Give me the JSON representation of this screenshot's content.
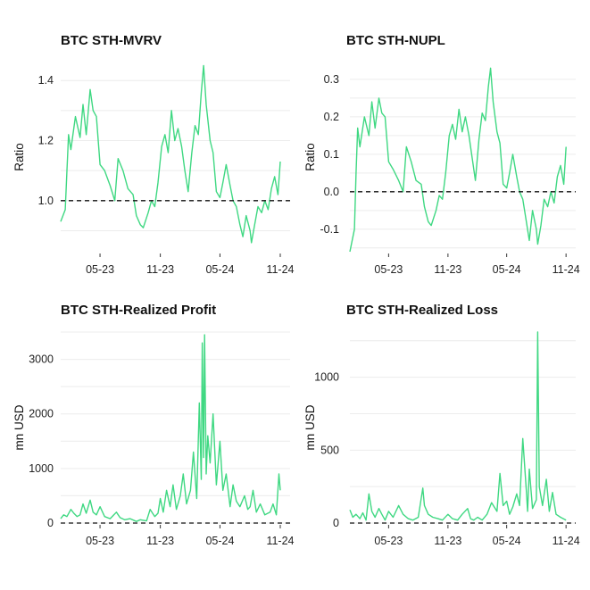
{
  "colors": {
    "series": "#3fd882",
    "zero_line": "#111111",
    "grid": "#ececec"
  },
  "chart_data": [
    {
      "type": "line",
      "title": "BTC STH-MVRV",
      "ylabel": "Ratio",
      "ylim": [
        0.83,
        1.46
      ],
      "yticks": [
        1.0,
        1.2,
        1.4
      ],
      "ytick_labels": [
        "1.0",
        "1.2",
        "1.4"
      ],
      "xlim": [
        "2023-01-01",
        "2024-12-01"
      ],
      "xticks": [
        "2023-05-01",
        "2023-11-01",
        "2024-05-01",
        "2024-11-01"
      ],
      "xtick_labels": [
        "05-23",
        "11-23",
        "05-24",
        "11-24"
      ],
      "reference_line": {
        "y": 1.0,
        "style": "dashed"
      },
      "grid": "horizontal",
      "series": [
        {
          "x": [
            "2023-01-01",
            "2023-01-15",
            "2023-01-20",
            "2023-01-25",
            "2023-02-01",
            "2023-02-15",
            "2023-03-01",
            "2023-03-10",
            "2023-03-20",
            "2023-04-01",
            "2023-04-10",
            "2023-04-20",
            "2023-05-01",
            "2023-05-15",
            "2023-06-01",
            "2023-06-15",
            "2023-06-25",
            "2023-07-10",
            "2023-07-25",
            "2023-08-10",
            "2023-08-20",
            "2023-09-01",
            "2023-09-10",
            "2023-09-25",
            "2023-10-05",
            "2023-10-15",
            "2023-10-25",
            "2023-11-05",
            "2023-11-15",
            "2023-11-25",
            "2023-12-05",
            "2023-12-15",
            "2023-12-25",
            "2024-01-05",
            "2024-01-15",
            "2024-01-25",
            "2024-02-05",
            "2024-02-15",
            "2024-02-25",
            "2024-03-05",
            "2024-03-12",
            "2024-03-20",
            "2024-04-01",
            "2024-04-10",
            "2024-04-20",
            "2024-05-01",
            "2024-05-10",
            "2024-05-20",
            "2024-06-01",
            "2024-06-10",
            "2024-06-20",
            "2024-07-01",
            "2024-07-10",
            "2024-07-20",
            "2024-08-01",
            "2024-08-05",
            "2024-08-15",
            "2024-08-25",
            "2024-09-05",
            "2024-09-15",
            "2024-09-25",
            "2024-10-05",
            "2024-10-15",
            "2024-10-25",
            "2024-11-01"
          ],
          "values": [
            0.93,
            0.97,
            1.1,
            1.22,
            1.17,
            1.28,
            1.21,
            1.32,
            1.22,
            1.37,
            1.3,
            1.28,
            1.12,
            1.1,
            1.05,
            1.0,
            1.14,
            1.1,
            1.04,
            1.02,
            0.95,
            0.92,
            0.91,
            0.96,
            1.0,
            0.98,
            1.06,
            1.18,
            1.22,
            1.16,
            1.3,
            1.2,
            1.24,
            1.18,
            1.1,
            1.03,
            1.16,
            1.25,
            1.22,
            1.36,
            1.45,
            1.32,
            1.2,
            1.16,
            1.03,
            1.01,
            1.06,
            1.12,
            1.05,
            1.0,
            0.98,
            0.92,
            0.88,
            0.95,
            0.9,
            0.86,
            0.92,
            0.98,
            0.96,
            1.0,
            0.97,
            1.04,
            1.08,
            1.02,
            1.13
          ]
        }
      ]
    },
    {
      "type": "line",
      "title": "BTC STH-NUPL",
      "ylabel": "Ratio",
      "ylim": [
        -0.16,
        0.345
      ],
      "yticks": [
        -0.1,
        0.0,
        0.1,
        0.2,
        0.3
      ],
      "ytick_labels": [
        "-0.1",
        "0.0",
        "0.1",
        "0.2",
        "0.3"
      ],
      "xlim": [
        "2023-01-01",
        "2024-12-01"
      ],
      "xticks": [
        "2023-05-01",
        "2023-11-01",
        "2024-05-01",
        "2024-11-01"
      ],
      "xtick_labels": [
        "05-23",
        "11-23",
        "05-24",
        "11-24"
      ],
      "reference_line": {
        "y": 0.0,
        "style": "dashed"
      },
      "grid": "horizontal",
      "series": [
        {
          "x": [
            "2023-01-01",
            "2023-01-15",
            "2023-01-20",
            "2023-01-25",
            "2023-02-01",
            "2023-02-15",
            "2023-03-01",
            "2023-03-10",
            "2023-03-20",
            "2023-04-01",
            "2023-04-10",
            "2023-04-20",
            "2023-05-01",
            "2023-05-15",
            "2023-06-01",
            "2023-06-15",
            "2023-06-25",
            "2023-07-10",
            "2023-07-25",
            "2023-08-10",
            "2023-08-20",
            "2023-09-01",
            "2023-09-10",
            "2023-09-25",
            "2023-10-05",
            "2023-10-15",
            "2023-10-25",
            "2023-11-05",
            "2023-11-15",
            "2023-11-25",
            "2023-12-05",
            "2023-12-15",
            "2023-12-25",
            "2024-01-05",
            "2024-01-15",
            "2024-01-25",
            "2024-02-05",
            "2024-02-15",
            "2024-02-25",
            "2024-03-05",
            "2024-03-12",
            "2024-03-20",
            "2024-04-01",
            "2024-04-10",
            "2024-04-20",
            "2024-05-01",
            "2024-05-10",
            "2024-05-20",
            "2024-06-01",
            "2024-06-10",
            "2024-06-20",
            "2024-07-01",
            "2024-07-10",
            "2024-07-20",
            "2024-08-01",
            "2024-08-05",
            "2024-08-15",
            "2024-08-25",
            "2024-09-05",
            "2024-09-15",
            "2024-09-25",
            "2024-10-05",
            "2024-10-15",
            "2024-10-25",
            "2024-11-01"
          ],
          "values": [
            -0.16,
            -0.1,
            0.05,
            0.17,
            0.12,
            0.2,
            0.15,
            0.24,
            0.17,
            0.25,
            0.21,
            0.2,
            0.08,
            0.06,
            0.03,
            0.0,
            0.12,
            0.08,
            0.03,
            0.02,
            -0.04,
            -0.08,
            -0.09,
            -0.05,
            -0.01,
            -0.02,
            0.05,
            0.15,
            0.18,
            0.14,
            0.22,
            0.16,
            0.2,
            0.15,
            0.09,
            0.03,
            0.14,
            0.21,
            0.19,
            0.28,
            0.33,
            0.24,
            0.16,
            0.13,
            0.02,
            0.01,
            0.05,
            0.1,
            0.04,
            0.0,
            -0.02,
            -0.08,
            -0.13,
            -0.05,
            -0.1,
            -0.14,
            -0.09,
            -0.02,
            -0.04,
            0.0,
            -0.03,
            0.04,
            0.07,
            0.02,
            0.12
          ]
        }
      ]
    },
    {
      "type": "line",
      "title": "BTC STH-Realized Profit",
      "ylabel": "mn USD",
      "ylim": [
        0,
        3500
      ],
      "yticks": [
        0,
        1000,
        2000,
        3000
      ],
      "ytick_labels": [
        "0",
        "1000",
        "2000",
        "3000"
      ],
      "xlim": [
        "2023-01-01",
        "2024-12-01"
      ],
      "xticks": [
        "2023-05-01",
        "2023-11-01",
        "2024-05-01",
        "2024-11-01"
      ],
      "xtick_labels": [
        "05-23",
        "11-23",
        "05-24",
        "11-24"
      ],
      "reference_line": {
        "y": 0,
        "style": "dashed"
      },
      "grid": "horizontal",
      "series": [
        {
          "x": [
            "2023-01-01",
            "2023-01-10",
            "2023-01-20",
            "2023-02-01",
            "2023-02-10",
            "2023-02-20",
            "2023-03-01",
            "2023-03-10",
            "2023-03-20",
            "2023-04-01",
            "2023-04-10",
            "2023-04-20",
            "2023-05-01",
            "2023-05-15",
            "2023-06-01",
            "2023-06-20",
            "2023-07-01",
            "2023-07-15",
            "2023-08-01",
            "2023-08-20",
            "2023-09-01",
            "2023-09-20",
            "2023-10-01",
            "2023-10-15",
            "2023-10-25",
            "2023-11-01",
            "2023-11-10",
            "2023-11-20",
            "2023-12-01",
            "2023-12-10",
            "2023-12-20",
            "2024-01-01",
            "2024-01-10",
            "2024-01-20",
            "2024-02-01",
            "2024-02-10",
            "2024-02-20",
            "2024-02-28",
            "2024-03-05",
            "2024-03-08",
            "2024-03-12",
            "2024-03-15",
            "2024-03-20",
            "2024-03-25",
            "2024-04-01",
            "2024-04-10",
            "2024-04-20",
            "2024-05-01",
            "2024-05-10",
            "2024-05-20",
            "2024-06-01",
            "2024-06-10",
            "2024-06-20",
            "2024-07-01",
            "2024-07-15",
            "2024-07-25",
            "2024-08-01",
            "2024-08-10",
            "2024-08-20",
            "2024-09-01",
            "2024-09-15",
            "2024-10-01",
            "2024-10-10",
            "2024-10-20",
            "2024-10-28",
            "2024-11-01"
          ],
          "values": [
            80,
            150,
            120,
            250,
            180,
            120,
            150,
            350,
            180,
            420,
            200,
            150,
            300,
            120,
            80,
            200,
            100,
            60,
            80,
            30,
            60,
            40,
            250,
            120,
            180,
            450,
            200,
            600,
            300,
            700,
            250,
            500,
            900,
            350,
            600,
            1300,
            450,
            2200,
            800,
            3300,
            1200,
            3450,
            900,
            1600,
            1100,
            2000,
            700,
            1500,
            600,
            900,
            300,
            700,
            400,
            300,
            500,
            250,
            300,
            600,
            200,
            350,
            150,
            200,
            350,
            150,
            900,
            600
          ]
        }
      ]
    },
    {
      "type": "line",
      "title": "BTC STH-Realized Loss",
      "ylabel": "mn USD",
      "ylim": [
        0,
        1310
      ],
      "yticks": [
        0,
        500,
        1000
      ],
      "ytick_labels": [
        "0",
        "500",
        "1000"
      ],
      "xlim": [
        "2023-01-01",
        "2024-12-01"
      ],
      "xticks": [
        "2023-05-01",
        "2023-11-01",
        "2024-05-01",
        "2024-11-01"
      ],
      "xtick_labels": [
        "05-23",
        "11-23",
        "05-24",
        "11-24"
      ],
      "reference_line": {
        "y": 0,
        "style": "dashed"
      },
      "grid": "horizontal",
      "series": [
        {
          "x": [
            "2023-01-01",
            "2023-01-10",
            "2023-01-20",
            "2023-02-01",
            "2023-02-10",
            "2023-02-20",
            "2023-03-01",
            "2023-03-10",
            "2023-03-20",
            "2023-04-01",
            "2023-04-10",
            "2023-04-20",
            "2023-05-01",
            "2023-05-15",
            "2023-06-01",
            "2023-06-15",
            "2023-07-01",
            "2023-07-15",
            "2023-08-01",
            "2023-08-15",
            "2023-08-20",
            "2023-09-01",
            "2023-09-15",
            "2023-10-01",
            "2023-10-15",
            "2023-11-01",
            "2023-11-15",
            "2023-12-01",
            "2023-12-15",
            "2024-01-01",
            "2024-01-10",
            "2024-01-20",
            "2024-02-01",
            "2024-02-15",
            "2024-03-01",
            "2024-03-15",
            "2024-04-01",
            "2024-04-10",
            "2024-04-20",
            "2024-05-01",
            "2024-05-10",
            "2024-05-20",
            "2024-06-01",
            "2024-06-10",
            "2024-06-20",
            "2024-07-01",
            "2024-07-05",
            "2024-07-10",
            "2024-07-20",
            "2024-08-01",
            "2024-08-05",
            "2024-08-10",
            "2024-08-20",
            "2024-09-01",
            "2024-09-10",
            "2024-09-20",
            "2024-10-01",
            "2024-10-15",
            "2024-11-01"
          ],
          "values": [
            90,
            40,
            60,
            30,
            70,
            20,
            200,
            80,
            40,
            100,
            60,
            20,
            80,
            40,
            120,
            60,
            30,
            20,
            40,
            240,
            120,
            60,
            40,
            30,
            20,
            60,
            30,
            20,
            60,
            100,
            30,
            20,
            40,
            20,
            60,
            140,
            80,
            340,
            120,
            150,
            60,
            110,
            200,
            120,
            580,
            220,
            80,
            370,
            100,
            160,
            1310,
            250,
            120,
            300,
            80,
            210,
            60,
            40,
            20
          ]
        }
      ]
    }
  ]
}
